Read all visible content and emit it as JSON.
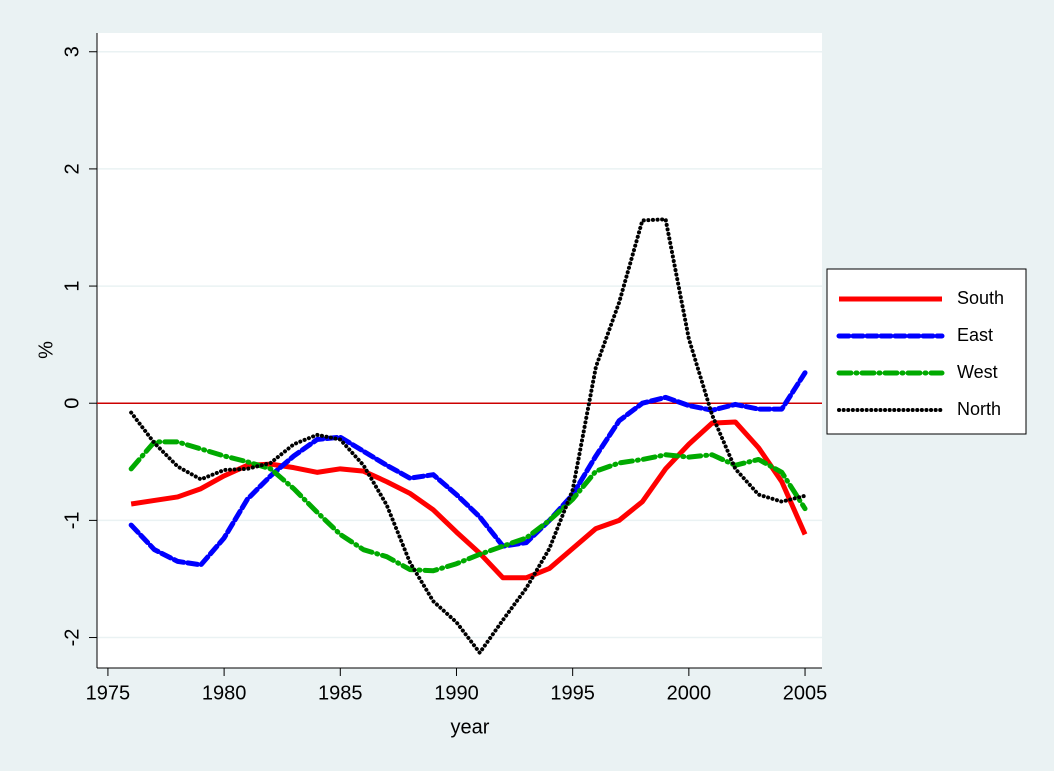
{
  "chart_data": {
    "type": "line",
    "x_label": "year",
    "y_label": "%",
    "x": [
      1976,
      1977,
      1978,
      1979,
      1980,
      1981,
      1982,
      1983,
      1984,
      1985,
      1986,
      1987,
      1988,
      1989,
      1990,
      1991,
      1992,
      1993,
      1994,
      1995,
      1996,
      1997,
      1998,
      1999,
      2000,
      2001,
      2002,
      2003,
      2004,
      2005
    ],
    "series": [
      {
        "name": "South",
        "color": "#ff0000",
        "dash": "solid",
        "values": [
          -0.86,
          -0.83,
          -0.8,
          -0.73,
          -0.62,
          -0.53,
          -0.52,
          -0.55,
          -0.59,
          -0.56,
          -0.58,
          -0.67,
          -0.77,
          -0.91,
          -1.1,
          -1.28,
          -1.49,
          -1.49,
          -1.41,
          -1.24,
          -1.07,
          -1.0,
          -0.84,
          -0.56,
          -0.35,
          -0.17,
          -0.16,
          -0.38,
          -0.67,
          -1.12
        ]
      },
      {
        "name": "East",
        "color": "#0000ff",
        "dash": "dash",
        "values": [
          -1.04,
          -1.25,
          -1.35,
          -1.38,
          -1.15,
          -0.82,
          -0.62,
          -0.45,
          -0.31,
          -0.29,
          -0.41,
          -0.53,
          -0.64,
          -0.61,
          -0.78,
          -0.97,
          -1.22,
          -1.19,
          -1.0,
          -0.78,
          -0.45,
          -0.15,
          0.0,
          0.05,
          -0.02,
          -0.06,
          -0.01,
          -0.05,
          -0.05,
          0.26
        ]
      },
      {
        "name": "West",
        "color": "#00aa00",
        "dash": "dash-dot",
        "values": [
          -0.56,
          -0.33,
          -0.33,
          -0.39,
          -0.45,
          -0.5,
          -0.56,
          -0.73,
          -0.93,
          -1.12,
          -1.25,
          -1.31,
          -1.42,
          -1.43,
          -1.37,
          -1.29,
          -1.22,
          -1.15,
          -1.0,
          -0.82,
          -0.58,
          -0.51,
          -0.48,
          -0.44,
          -0.46,
          -0.44,
          -0.53,
          -0.48,
          -0.59,
          -0.9
        ]
      },
      {
        "name": "North",
        "color": "#000000",
        "dash": "dot",
        "values": [
          -0.08,
          -0.34,
          -0.54,
          -0.65,
          -0.57,
          -0.56,
          -0.51,
          -0.35,
          -0.27,
          -0.31,
          -0.53,
          -0.87,
          -1.36,
          -1.69,
          -1.87,
          -2.13,
          -1.85,
          -1.58,
          -1.24,
          -0.74,
          0.31,
          0.86,
          1.56,
          1.57,
          0.55,
          -0.1,
          -0.56,
          -0.78,
          -0.84,
          -0.79
        ]
      }
    ],
    "xlim": [
      1974.53,
      2005.73
    ],
    "xticks": [
      1975,
      1980,
      1985,
      1990,
      1995,
      2000,
      2005
    ],
    "ylim": [
      -2.26,
      3.16
    ],
    "yticks": [
      -2,
      -1,
      0,
      1,
      2,
      3
    ],
    "yline": 0,
    "yline_color": "#cc0000",
    "grid": true,
    "legend": "right"
  }
}
